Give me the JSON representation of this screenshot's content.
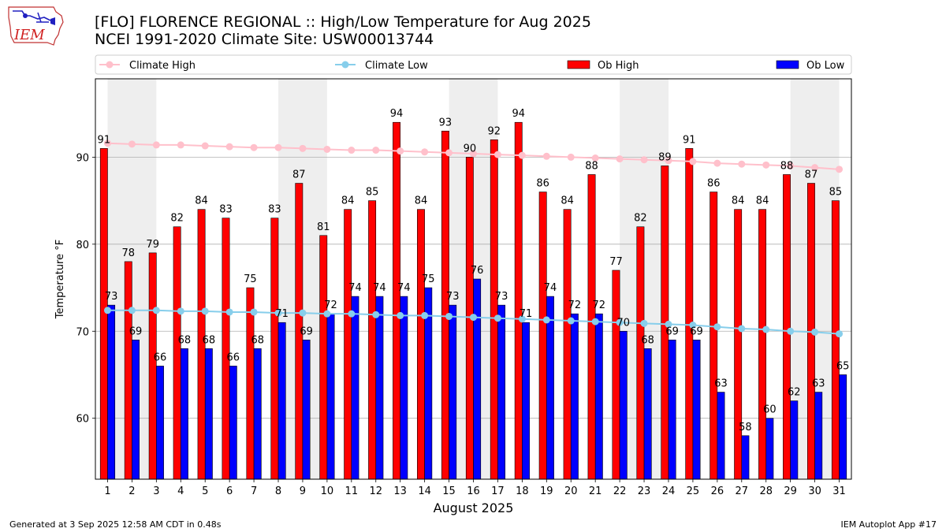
{
  "header": {
    "title": "[FLO] FLORENCE REGIONAL :: High/Low Temperature for Aug 2025",
    "subtitle": "NCEI 1991-2020 Climate Site: USW00013744",
    "logo_text": "IEM"
  },
  "footer": {
    "left": "Generated at 3 Sep 2025 12:58 AM CDT in 0.48s",
    "right": "IEM Autoplot App #17"
  },
  "colors": {
    "ob_high": "#ff0000",
    "ob_low": "#0000ff",
    "climate_high": "#ffc0cb",
    "climate_low": "#87ceeb",
    "weekend_shade": "#eeeeee",
    "grid": "#b0b0b0"
  },
  "chart_data": {
    "type": "bar",
    "xlabel": "August 2025",
    "ylabel": "Temperature °F",
    "ylim": [
      53,
      99
    ],
    "yticks": [
      60,
      70,
      80,
      90
    ],
    "grid": "horizontal",
    "legend_position": "top",
    "categories": [
      "1",
      "2",
      "3",
      "4",
      "5",
      "6",
      "7",
      "8",
      "9",
      "10",
      "11",
      "12",
      "13",
      "14",
      "15",
      "16",
      "17",
      "18",
      "19",
      "20",
      "21",
      "22",
      "23",
      "24",
      "25",
      "26",
      "27",
      "28",
      "29",
      "30",
      "31"
    ],
    "shaded_days": [
      2,
      9,
      16,
      23,
      30
    ],
    "legend": [
      "Climate High",
      "Climate Low",
      "Ob High",
      "Ob Low"
    ],
    "series": [
      {
        "name": "Ob High",
        "kind": "bar",
        "values": [
          91,
          78,
          79,
          82,
          84,
          83,
          75,
          83,
          87,
          81,
          84,
          85,
          94,
          84,
          93,
          90,
          92,
          94,
          86,
          84,
          88,
          77,
          82,
          89,
          91,
          86,
          84,
          84,
          88,
          87,
          85
        ]
      },
      {
        "name": "Ob Low",
        "kind": "bar",
        "values": [
          73,
          69,
          66,
          68,
          68,
          66,
          68,
          71,
          69,
          72,
          74,
          74,
          74,
          75,
          73,
          76,
          73,
          71,
          74,
          72,
          72,
          70,
          68,
          69,
          69,
          63,
          58,
          60,
          62,
          63,
          65
        ]
      },
      {
        "name": "Climate High",
        "kind": "line",
        "values": [
          91.6,
          91.5,
          91.4,
          91.4,
          91.3,
          91.2,
          91.1,
          91.1,
          91.0,
          90.9,
          90.8,
          90.8,
          90.7,
          90.6,
          90.5,
          90.4,
          90.3,
          90.2,
          90.1,
          90.0,
          89.9,
          89.8,
          89.7,
          89.6,
          89.5,
          89.3,
          89.2,
          89.1,
          89.0,
          88.8,
          88.6
        ]
      },
      {
        "name": "Climate Low",
        "kind": "line",
        "values": [
          72.4,
          72.4,
          72.4,
          72.3,
          72.3,
          72.2,
          72.2,
          72.1,
          72.1,
          72.0,
          72.0,
          71.9,
          71.8,
          71.8,
          71.7,
          71.6,
          71.5,
          71.4,
          71.3,
          71.2,
          71.1,
          71.0,
          70.9,
          70.8,
          70.7,
          70.5,
          70.3,
          70.2,
          70.0,
          69.9,
          69.7
        ]
      }
    ]
  }
}
